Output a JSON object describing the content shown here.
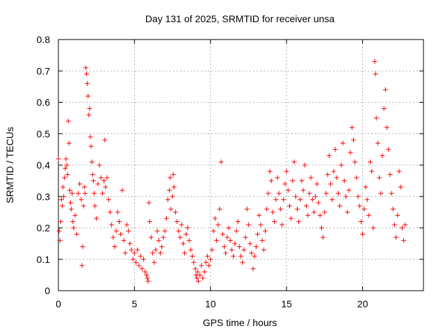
{
  "chart_data": {
    "type": "scatter",
    "title": "Day 131 of 2025, SRMTID for receiver unsa",
    "xlabel": "GPS time / hours",
    "ylabel": "SRMTID / TECUs",
    "xlim": [
      0,
      24
    ],
    "ylim": [
      0,
      0.8
    ],
    "x_ticks": [
      0,
      5,
      10,
      15,
      20
    ],
    "x_tick_labels": [
      "0",
      "5",
      "10",
      "15",
      "20"
    ],
    "y_ticks": [
      0,
      0.1,
      0.2,
      0.3,
      0.4,
      0.5,
      0.6,
      0.7,
      0.8
    ],
    "y_tick_labels": [
      "0",
      "0.1",
      "0.2",
      "0.3",
      "0.4",
      "0.5",
      "0.6",
      "0.7",
      "0.8"
    ],
    "grid": true,
    "marker": "plus",
    "color": "#ff0000",
    "series": [
      {
        "name": "SRMTID",
        "points": [
          [
            0.0,
            0.42
          ],
          [
            0.05,
            0.19
          ],
          [
            0.1,
            0.16
          ],
          [
            0.15,
            0.22
          ],
          [
            0.2,
            0.29
          ],
          [
            0.25,
            0.27
          ],
          [
            0.3,
            0.33
          ],
          [
            0.35,
            0.3
          ],
          [
            0.4,
            0.36
          ],
          [
            0.45,
            0.39
          ],
          [
            0.5,
            0.42
          ],
          [
            0.55,
            0.4
          ],
          [
            0.6,
            0.37
          ],
          [
            0.65,
            0.54
          ],
          [
            0.7,
            0.47
          ],
          [
            0.75,
            0.32
          ],
          [
            0.8,
            0.28
          ],
          [
            0.85,
            0.26
          ],
          [
            0.9,
            0.31
          ],
          [
            0.95,
            0.22
          ],
          [
            1.0,
            0.2
          ],
          [
            1.1,
            0.24
          ],
          [
            1.2,
            0.18
          ],
          [
            1.3,
            0.31
          ],
          [
            1.4,
            0.34
          ],
          [
            1.5,
            0.29
          ],
          [
            1.55,
            0.08
          ],
          [
            1.6,
            0.14
          ],
          [
            1.65,
            0.27
          ],
          [
            1.7,
            0.33
          ],
          [
            1.75,
            0.31
          ],
          [
            1.8,
            0.71
          ],
          [
            1.85,
            0.69
          ],
          [
            1.9,
            0.66
          ],
          [
            1.95,
            0.62
          ],
          [
            2.0,
            0.56
          ],
          [
            2.05,
            0.58
          ],
          [
            2.1,
            0.49
          ],
          [
            2.15,
            0.46
          ],
          [
            2.2,
            0.41
          ],
          [
            2.25,
            0.37
          ],
          [
            2.3,
            0.35
          ],
          [
            2.35,
            0.31
          ],
          [
            2.4,
            0.27
          ],
          [
            2.5,
            0.23
          ],
          [
            2.6,
            0.34
          ],
          [
            2.7,
            0.4
          ],
          [
            2.8,
            0.36
          ],
          [
            2.9,
            0.31
          ],
          [
            3.0,
            0.35
          ],
          [
            3.05,
            0.48
          ],
          [
            3.1,
            0.33
          ],
          [
            3.2,
            0.36
          ],
          [
            3.3,
            0.29
          ],
          [
            3.4,
            0.25
          ],
          [
            3.5,
            0.21
          ],
          [
            3.6,
            0.17
          ],
          [
            3.7,
            0.14
          ],
          [
            3.8,
            0.19
          ],
          [
            3.9,
            0.25
          ],
          [
            4.0,
            0.22
          ],
          [
            4.1,
            0.18
          ],
          [
            4.2,
            0.32
          ],
          [
            4.3,
            0.16
          ],
          [
            4.4,
            0.12
          ],
          [
            4.5,
            0.21
          ],
          [
            4.6,
            0.19
          ],
          [
            4.7,
            0.15
          ],
          [
            4.8,
            0.13
          ],
          [
            4.9,
            0.1
          ],
          [
            5.0,
            0.12
          ],
          [
            5.1,
            0.09
          ],
          [
            5.2,
            0.13
          ],
          [
            5.3,
            0.08
          ],
          [
            5.4,
            0.11
          ],
          [
            5.5,
            0.07
          ],
          [
            5.6,
            0.1
          ],
          [
            5.7,
            0.06
          ],
          [
            5.8,
            0.05
          ],
          [
            5.85,
            0.04
          ],
          [
            5.9,
            0.03
          ],
          [
            5.95,
            0.28
          ],
          [
            6.0,
            0.22
          ],
          [
            6.1,
            0.17
          ],
          [
            6.2,
            0.12
          ],
          [
            6.3,
            0.09
          ],
          [
            6.4,
            0.13
          ],
          [
            6.5,
            0.19
          ],
          [
            6.6,
            0.16
          ],
          [
            6.7,
            0.12
          ],
          [
            6.8,
            0.14
          ],
          [
            6.9,
            0.17
          ],
          [
            7.0,
            0.19
          ],
          [
            7.1,
            0.23
          ],
          [
            7.2,
            0.29
          ],
          [
            7.3,
            0.32
          ],
          [
            7.35,
            0.36
          ],
          [
            7.4,
            0.26
          ],
          [
            7.5,
            0.3
          ],
          [
            7.55,
            0.37
          ],
          [
            7.6,
            0.33
          ],
          [
            7.7,
            0.25
          ],
          [
            7.8,
            0.22
          ],
          [
            7.9,
            0.19
          ],
          [
            8.0,
            0.17
          ],
          [
            8.1,
            0.21
          ],
          [
            8.2,
            0.15
          ],
          [
            8.3,
            0.12
          ],
          [
            8.4,
            0.18
          ],
          [
            8.5,
            0.2
          ],
          [
            8.6,
            0.16
          ],
          [
            8.7,
            0.13
          ],
          [
            8.8,
            0.11
          ],
          [
            8.9,
            0.09
          ],
          [
            9.0,
            0.07
          ],
          [
            9.05,
            0.05
          ],
          [
            9.1,
            0.04
          ],
          [
            9.15,
            0.06
          ],
          [
            9.2,
            0.03
          ],
          [
            9.3,
            0.05
          ],
          [
            9.4,
            0.08
          ],
          [
            9.5,
            0.04
          ],
          [
            9.6,
            0.06
          ],
          [
            9.7,
            0.09
          ],
          [
            9.8,
            0.11
          ],
          [
            9.9,
            0.08
          ],
          [
            10.0,
            0.1
          ],
          [
            10.1,
            0.13
          ],
          [
            10.2,
            0.19
          ],
          [
            10.3,
            0.23
          ],
          [
            10.4,
            0.16
          ],
          [
            10.5,
            0.21
          ],
          [
            10.6,
            0.26
          ],
          [
            10.7,
            0.41
          ],
          [
            10.8,
            0.18
          ],
          [
            10.9,
            0.14
          ],
          [
            11.0,
            0.12
          ],
          [
            11.1,
            0.17
          ],
          [
            11.2,
            0.2
          ],
          [
            11.3,
            0.16
          ],
          [
            11.4,
            0.13
          ],
          [
            11.5,
            0.11
          ],
          [
            11.6,
            0.15
          ],
          [
            11.7,
            0.19
          ],
          [
            11.8,
            0.22
          ],
          [
            11.9,
            0.14
          ],
          [
            12.0,
            0.11
          ],
          [
            12.1,
            0.09
          ],
          [
            12.2,
            0.13
          ],
          [
            12.3,
            0.17
          ],
          [
            12.4,
            0.26
          ],
          [
            12.5,
            0.21
          ],
          [
            12.6,
            0.15
          ],
          [
            12.7,
            0.12
          ],
          [
            12.8,
            0.07
          ],
          [
            12.9,
            0.11
          ],
          [
            13.0,
            0.14
          ],
          [
            13.1,
            0.18
          ],
          [
            13.2,
            0.24
          ],
          [
            13.3,
            0.21
          ],
          [
            13.4,
            0.16
          ],
          [
            13.5,
            0.13
          ],
          [
            13.6,
            0.19
          ],
          [
            13.7,
            0.26
          ],
          [
            13.8,
            0.31
          ],
          [
            13.9,
            0.38
          ],
          [
            14.0,
            0.35
          ],
          [
            14.1,
            0.25
          ],
          [
            14.2,
            0.22
          ],
          [
            14.3,
            0.29
          ],
          [
            14.4,
            0.36
          ],
          [
            14.5,
            0.31
          ],
          [
            14.6,
            0.26
          ],
          [
            14.7,
            0.21
          ],
          [
            14.8,
            0.29
          ],
          [
            14.9,
            0.34
          ],
          [
            15.0,
            0.38
          ],
          [
            15.1,
            0.32
          ],
          [
            15.2,
            0.27
          ],
          [
            15.3,
            0.23
          ],
          [
            15.4,
            0.35
          ],
          [
            15.5,
            0.41
          ],
          [
            15.6,
            0.3
          ],
          [
            15.7,
            0.26
          ],
          [
            15.8,
            0.22
          ],
          [
            15.9,
            0.29
          ],
          [
            16.0,
            0.35
          ],
          [
            16.1,
            0.32
          ],
          [
            16.2,
            0.4
          ],
          [
            16.3,
            0.27
          ],
          [
            16.4,
            0.24
          ],
          [
            16.5,
            0.31
          ],
          [
            16.6,
            0.36
          ],
          [
            16.7,
            0.29
          ],
          [
            16.8,
            0.25
          ],
          [
            16.9,
            0.3
          ],
          [
            17.0,
            0.34
          ],
          [
            17.1,
            0.28
          ],
          [
            17.2,
            0.24
          ],
          [
            17.3,
            0.2
          ],
          [
            17.4,
            0.17
          ],
          [
            17.5,
            0.25
          ],
          [
            17.6,
            0.31
          ],
          [
            17.7,
            0.37
          ],
          [
            17.8,
            0.43
          ],
          [
            17.9,
            0.34
          ],
          [
            18.0,
            0.29
          ],
          [
            18.1,
            0.38
          ],
          [
            18.2,
            0.45
          ],
          [
            18.3,
            0.36
          ],
          [
            18.4,
            0.31
          ],
          [
            18.5,
            0.27
          ],
          [
            18.6,
            0.4
          ],
          [
            18.7,
            0.47
          ],
          [
            18.8,
            0.35
          ],
          [
            18.9,
            0.3
          ],
          [
            19.0,
            0.25
          ],
          [
            19.1,
            0.32
          ],
          [
            19.2,
            0.44
          ],
          [
            19.3,
            0.52
          ],
          [
            19.4,
            0.48
          ],
          [
            19.5,
            0.41
          ],
          [
            19.6,
            0.36
          ],
          [
            19.7,
            0.3
          ],
          [
            19.8,
            0.27
          ],
          [
            19.9,
            0.22
          ],
          [
            20.0,
            0.18
          ],
          [
            20.1,
            0.26
          ],
          [
            20.2,
            0.33
          ],
          [
            20.3,
            0.29
          ],
          [
            20.4,
            0.24
          ],
          [
            20.5,
            0.41
          ],
          [
            20.6,
            0.38
          ],
          [
            20.7,
            0.2
          ],
          [
            20.8,
            0.73
          ],
          [
            20.85,
            0.69
          ],
          [
            20.9,
            0.55
          ],
          [
            21.0,
            0.47
          ],
          [
            21.1,
            0.36
          ],
          [
            21.2,
            0.31
          ],
          [
            21.3,
            0.43
          ],
          [
            21.4,
            0.58
          ],
          [
            21.5,
            0.64
          ],
          [
            21.6,
            0.52
          ],
          [
            21.7,
            0.45
          ],
          [
            21.8,
            0.37
          ],
          [
            21.9,
            0.31
          ],
          [
            22.0,
            0.26
          ],
          [
            22.1,
            0.21
          ],
          [
            22.2,
            0.17
          ],
          [
            22.3,
            0.24
          ],
          [
            22.4,
            0.38
          ],
          [
            22.5,
            0.33
          ],
          [
            22.6,
            0.2
          ],
          [
            22.7,
            0.16
          ],
          [
            22.8,
            0.21
          ]
        ]
      }
    ]
  }
}
